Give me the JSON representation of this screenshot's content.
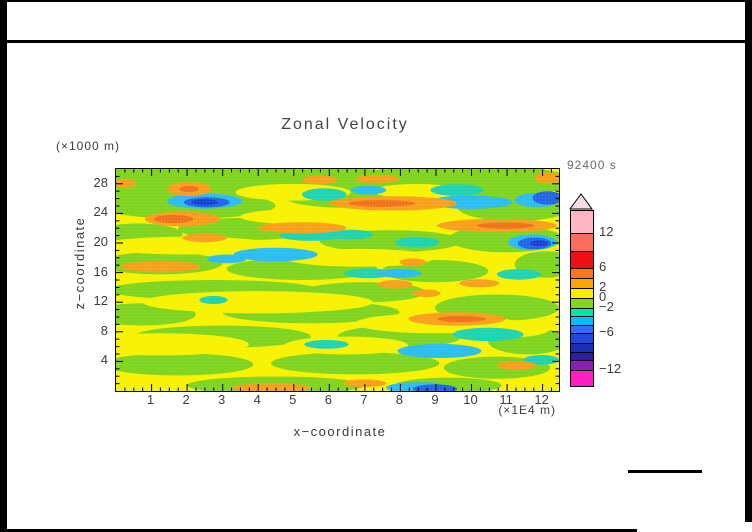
{
  "header": {
    "title": "Zonal Velocity",
    "time_label": "92400 s"
  },
  "chart_data": {
    "type": "filled_contour",
    "title": "Zonal Velocity",
    "time_label": "92400 s",
    "xlabel": "x−coordinate",
    "x_units_label": "(×1E4 m)",
    "zlabel": "z−coordinate",
    "z_units_label": "(×1000 m)",
    "x_range": [
      0,
      12.46
    ],
    "x_ticks": [
      1,
      2,
      3,
      4,
      5,
      6,
      7,
      8,
      9,
      10,
      11,
      12
    ],
    "x_minor_step": 0.25,
    "z_range": [
      0,
      30
    ],
    "z_ticks": [
      4,
      8,
      12,
      16,
      20,
      24,
      28
    ],
    "z_minor_step": 1,
    "grid": false,
    "legend_position": "right",
    "field_background_level": "0 to 2 (yellow)",
    "field_palette": {
      "Y": "#F8F200",
      "G": "#7FD41E",
      "T": "#1ED3B2",
      "C": "#29BDF2",
      "B": "#2166E8",
      "D": "#1840CE",
      "O": "#F9A01B",
      "R": "#F0711C"
    },
    "colorbar": {
      "arrow_color": "#F6DEE3",
      "bands": [
        {
          "color": "#FFB6C1",
          "h": 22,
          "label": "12"
        },
        {
          "color": "#FF6B5E",
          "h": 18
        },
        {
          "color": "#EE1111",
          "h": 17,
          "label": "6"
        },
        {
          "color": "#FF7519",
          "h": 10
        },
        {
          "color": "#FFA400",
          "h": 10,
          "label": "2"
        },
        {
          "color": "#F8EC00",
          "h": 10,
          "label": "0"
        },
        {
          "color": "#86D41E",
          "h": 10,
          "label": "−2"
        },
        {
          "color": "#00E6A8",
          "h": 8
        },
        {
          "color": "#00BFF5",
          "h": 9
        },
        {
          "color": "#2F6BFF",
          "h": 8,
          "label": "−6"
        },
        {
          "color": "#2149DC",
          "h": 10
        },
        {
          "color": "#1B2FB4",
          "h": 9
        },
        {
          "color": "#2E1D9E",
          "h": 8
        },
        {
          "color": "#8A1FB4",
          "h": 10,
          "label": "−12"
        },
        {
          "color": "#FF1FC3",
          "h": 16
        }
      ]
    },
    "field_blobs": [
      [
        0.1,
        0.055,
        0.28,
        0.075,
        "G"
      ],
      [
        0.42,
        0.045,
        0.22,
        0.06,
        "G"
      ],
      [
        0.78,
        0.055,
        0.26,
        0.075,
        "G"
      ],
      [
        0.16,
        0.165,
        0.2,
        0.06,
        "G"
      ],
      [
        0.52,
        0.125,
        0.14,
        0.05,
        "G"
      ],
      [
        0.9,
        0.17,
        0.13,
        0.065,
        "G"
      ],
      [
        0.05,
        0.295,
        0.1,
        0.05,
        "G"
      ],
      [
        0.3,
        0.27,
        0.16,
        0.05,
        "G"
      ],
      [
        0.62,
        0.325,
        0.16,
        0.05,
        "G"
      ],
      [
        0.88,
        0.315,
        0.13,
        0.06,
        "G"
      ],
      [
        0.1,
        0.425,
        0.14,
        0.05,
        "G"
      ],
      [
        0.42,
        0.45,
        0.17,
        0.05,
        "G"
      ],
      [
        0.72,
        0.46,
        0.12,
        0.05,
        "G"
      ],
      [
        0.97,
        0.43,
        0.07,
        0.06,
        "G"
      ],
      [
        0.22,
        0.545,
        0.24,
        0.045,
        "G"
      ],
      [
        0.56,
        0.555,
        0.14,
        0.045,
        "G"
      ],
      [
        0.06,
        0.655,
        0.12,
        0.05,
        "G"
      ],
      [
        0.44,
        0.645,
        0.2,
        0.05,
        "G"
      ],
      [
        0.86,
        0.625,
        0.14,
        0.06,
        "G"
      ],
      [
        0.24,
        0.755,
        0.2,
        0.05,
        "G"
      ],
      [
        0.64,
        0.755,
        0.14,
        0.05,
        "G"
      ],
      [
        0.93,
        0.775,
        0.09,
        0.06,
        "G"
      ],
      [
        0.14,
        0.88,
        0.17,
        0.05,
        "G"
      ],
      [
        0.54,
        0.875,
        0.19,
        0.05,
        "G"
      ],
      [
        0.86,
        0.895,
        0.12,
        0.05,
        "G"
      ],
      [
        0.36,
        0.975,
        0.2,
        0.04,
        "G"
      ],
      [
        0.75,
        0.975,
        0.12,
        0.035,
        "G"
      ],
      [
        0.4,
        0.105,
        0.13,
        0.038,
        "Y"
      ],
      [
        0.68,
        0.1,
        0.1,
        0.033,
        "Y"
      ],
      [
        0.16,
        0.345,
        0.2,
        0.04,
        "Y"
      ],
      [
        0.55,
        0.4,
        0.17,
        0.04,
        "Y"
      ],
      [
        0.32,
        0.6,
        0.26,
        0.05,
        "Y"
      ],
      [
        0.72,
        0.695,
        0.18,
        0.045,
        "Y"
      ],
      [
        0.1,
        0.79,
        0.2,
        0.05,
        "Y"
      ],
      [
        0.52,
        0.795,
        0.14,
        0.04,
        "Y"
      ],
      [
        0.46,
        0.215,
        0.18,
        0.038,
        "Y"
      ],
      [
        0.88,
        0.72,
        0.1,
        0.04,
        "Y"
      ],
      [
        0.47,
        0.115,
        0.05,
        0.028,
        "T"
      ],
      [
        0.77,
        0.095,
        0.06,
        0.026,
        "T"
      ],
      [
        0.53,
        0.295,
        0.05,
        0.022,
        "T"
      ],
      [
        0.68,
        0.33,
        0.05,
        0.024,
        "T"
      ],
      [
        0.57,
        0.47,
        0.055,
        0.022,
        "T"
      ],
      [
        0.91,
        0.475,
        0.05,
        0.024,
        "T"
      ],
      [
        0.84,
        0.745,
        0.08,
        0.03,
        "T"
      ],
      [
        0.22,
        0.59,
        0.032,
        0.018,
        "T"
      ],
      [
        0.44,
        0.3,
        0.07,
        0.024,
        "T"
      ],
      [
        0.96,
        0.86,
        0.04,
        0.022,
        "T"
      ],
      [
        0.475,
        0.79,
        0.05,
        0.02,
        "T"
      ],
      [
        0.2,
        0.145,
        0.085,
        0.034,
        "C"
      ],
      [
        0.8,
        0.15,
        0.095,
        0.03,
        "C"
      ],
      [
        0.95,
        0.14,
        0.05,
        0.032,
        "C"
      ],
      [
        0.36,
        0.385,
        0.095,
        0.03,
        "C"
      ],
      [
        0.94,
        0.33,
        0.055,
        0.035,
        "C"
      ],
      [
        0.73,
        0.82,
        0.095,
        0.032,
        "C"
      ],
      [
        0.68,
        0.985,
        0.07,
        0.025,
        "C"
      ],
      [
        0.25,
        0.405,
        0.045,
        0.02,
        "C"
      ],
      [
        0.64,
        0.47,
        0.05,
        0.02,
        "C"
      ],
      [
        0.57,
        0.095,
        0.04,
        0.02,
        "C"
      ],
      [
        0.205,
        0.15,
        0.052,
        0.023,
        "B"
      ],
      [
        0.975,
        0.13,
        0.035,
        0.03,
        "B"
      ],
      [
        0.945,
        0.335,
        0.038,
        0.026,
        "B"
      ],
      [
        0.72,
        0.99,
        0.05,
        0.02,
        "B"
      ],
      [
        0.2,
        0.15,
        0.03,
        0.014,
        "D"
      ],
      [
        0.955,
        0.335,
        0.02,
        0.014,
        "D"
      ],
      [
        0.165,
        0.09,
        0.05,
        0.032,
        "O"
      ],
      [
        0.02,
        0.065,
        0.025,
        0.02,
        "O"
      ],
      [
        0.15,
        0.225,
        0.085,
        0.034,
        "O"
      ],
      [
        0.42,
        0.265,
        0.1,
        0.025,
        "O"
      ],
      [
        0.625,
        0.155,
        0.145,
        0.032,
        "O"
      ],
      [
        0.86,
        0.255,
        0.135,
        0.03,
        "O"
      ],
      [
        0.1,
        0.44,
        0.09,
        0.026,
        "O"
      ],
      [
        0.67,
        0.42,
        0.03,
        0.017,
        "O"
      ],
      [
        0.77,
        0.675,
        0.11,
        0.03,
        "O"
      ],
      [
        0.63,
        0.52,
        0.04,
        0.02,
        "O"
      ],
      [
        0.7,
        0.56,
        0.033,
        0.017,
        "O"
      ],
      [
        0.82,
        0.515,
        0.045,
        0.018,
        "O"
      ],
      [
        0.35,
        0.985,
        0.09,
        0.02,
        "O"
      ],
      [
        0.56,
        0.965,
        0.05,
        0.017,
        "O"
      ],
      [
        0.905,
        0.885,
        0.045,
        0.02,
        "O"
      ],
      [
        0.46,
        0.05,
        0.04,
        0.02,
        "O"
      ],
      [
        0.59,
        0.045,
        0.05,
        0.018,
        "O"
      ],
      [
        0.975,
        0.04,
        0.03,
        0.025,
        "O"
      ],
      [
        0.2,
        0.31,
        0.05,
        0.02,
        "O"
      ],
      [
        0.13,
        0.225,
        0.045,
        0.018,
        "R"
      ],
      [
        0.6,
        0.155,
        0.075,
        0.015,
        "R"
      ],
      [
        0.88,
        0.255,
        0.065,
        0.014,
        "R"
      ],
      [
        0.78,
        0.675,
        0.055,
        0.014,
        "R"
      ],
      [
        0.165,
        0.09,
        0.022,
        0.014,
        "R"
      ]
    ]
  }
}
